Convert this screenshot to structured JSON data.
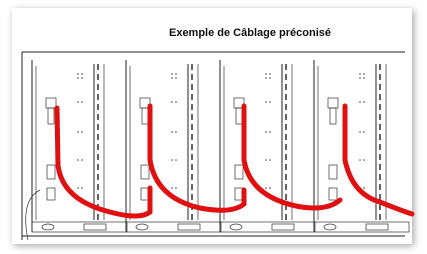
{
  "title": "Exemple de Câblage préconisé"
}
